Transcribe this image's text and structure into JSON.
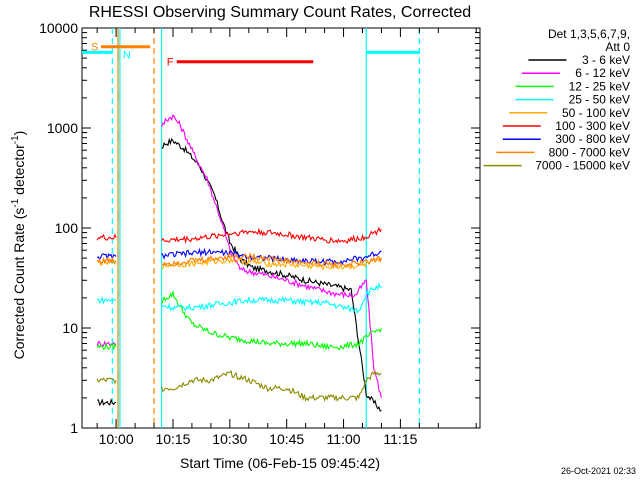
{
  "chart_data": {
    "type": "line",
    "title": "RHESSI Observing Summary Count Rates, Corrected",
    "xlabel": "Start Time (06-Feb-15 09:45:42)",
    "ylabel_main": "Corrected Count Rate (s",
    "ylabel_sup1": "-1",
    "ylabel_mid": " detector",
    "ylabel_sup2": "-1",
    "ylabel_end": ")",
    "yscale": "log",
    "ylim": [
      1,
      10000
    ],
    "xlim": [
      -9,
      96
    ],
    "x_unit": "minutes from 10:00",
    "y_ticks": [
      {
        "value": 1,
        "label": "1"
      },
      {
        "value": 10,
        "label": "10"
      },
      {
        "value": 100,
        "label": "100"
      },
      {
        "value": 1000,
        "label": "1000"
      },
      {
        "value": 10000,
        "label": "10000"
      }
    ],
    "x_ticks": [
      {
        "value": 0,
        "label": "10:00"
      },
      {
        "value": 15,
        "label": "10:15"
      },
      {
        "value": 30,
        "label": "10:30"
      },
      {
        "value": 45,
        "label": "10:45"
      },
      {
        "value": 60,
        "label": "11:00"
      },
      {
        "value": 75,
        "label": "11:15"
      }
    ],
    "legend_title_line1": "Det 1,3,5,6,7,9,",
    "legend_title_line2": "Att 0",
    "legend_position": "right",
    "timestamp": "26-Oct-2021 02:33",
    "flags": [
      {
        "label": "S",
        "color": "#ff7f00",
        "x1": -4,
        "x2": 9,
        "y": 6500
      },
      {
        "label": "N",
        "color": "#00ffff",
        "x1": 1,
        "x2": 1,
        "y": 6500
      },
      {
        "label": "F",
        "color": "#ff0000",
        "x1": 16,
        "x2": 52,
        "y": 4600
      }
    ],
    "night_bars": [
      {
        "x1": -9,
        "x2": -1,
        "y": 5700
      },
      {
        "x1": 66,
        "x2": 80,
        "y": 5700
      }
    ],
    "vlines": [
      {
        "x": -1,
        "color": "#00ffff",
        "style": "dashed"
      },
      {
        "x": 1,
        "color": "#00ffff",
        "style": "solid"
      },
      {
        "x": 0.5,
        "color": "#ff7f00",
        "style": "solid"
      },
      {
        "x": 10,
        "color": "#ff7f00",
        "style": "dashed"
      },
      {
        "x": 12,
        "color": "#00ffff",
        "style": "solid"
      },
      {
        "x": 66,
        "color": "#00ffff",
        "style": "solid"
      },
      {
        "x": 80,
        "color": "#00ffff",
        "style": "dashed"
      }
    ],
    "series": [
      {
        "name": "3 - 6 keV",
        "color": "#000000",
        "x": [
          -5,
          0,
          12,
          13,
          15,
          18,
          22,
          26,
          28,
          30,
          33,
          36,
          42,
          50,
          58,
          62,
          66,
          68,
          70
        ],
        "y": [
          1.8,
          1.8,
          650,
          700,
          750,
          620,
          420,
          210,
          120,
          72,
          48,
          40,
          36,
          30,
          26,
          24,
          2.2,
          1.8,
          1.5
        ]
      },
      {
        "name": "6 - 12 keV",
        "color": "#ff00ff",
        "x": [
          -5,
          0,
          12,
          13,
          15,
          17,
          20,
          24,
          28,
          30,
          33,
          38,
          45,
          52,
          58,
          63,
          66,
          68,
          70
        ],
        "y": [
          7,
          7,
          1000,
          1200,
          1320,
          1050,
          600,
          310,
          110,
          60,
          38,
          35,
          30,
          25,
          22,
          21,
          30,
          4,
          2
        ]
      },
      {
        "name": "12 - 25 keV",
        "color": "#00ff00",
        "x": [
          -5,
          0,
          12,
          13,
          15,
          17,
          20,
          25,
          30,
          35,
          40,
          45,
          50,
          55,
          60,
          64,
          66,
          68,
          70
        ],
        "y": [
          6.5,
          6.5,
          18,
          20,
          22,
          16,
          11,
          9,
          8,
          7.5,
          7,
          7,
          7,
          6.5,
          6.5,
          7,
          8,
          9,
          10
        ]
      },
      {
        "name": "25 - 50 keV",
        "color": "#00ffff",
        "x": [
          -5,
          0,
          12,
          15,
          20,
          25,
          30,
          35,
          40,
          45,
          50,
          55,
          60,
          64,
          66,
          68,
          70
        ],
        "y": [
          19,
          19,
          17,
          16,
          16,
          17,
          18,
          19,
          19,
          19,
          18,
          18,
          16,
          15,
          22,
          25,
          26
        ]
      },
      {
        "name": "50 - 100 keV",
        "color": "#ffaa00",
        "x": [
          -5,
          0,
          12,
          15,
          20,
          25,
          30,
          35,
          40,
          45,
          50,
          55,
          60,
          65,
          70
        ],
        "y": [
          45,
          45,
          42,
          43,
          44,
          46,
          48,
          46,
          44,
          43,
          42,
          41,
          41,
          42,
          48
        ]
      },
      {
        "name": "100 - 300 keV",
        "color": "#ff0000",
        "x": [
          -5,
          0,
          12,
          15,
          20,
          25,
          30,
          35,
          40,
          45,
          50,
          55,
          60,
          65,
          70
        ],
        "y": [
          80,
          80,
          75,
          76,
          78,
          82,
          88,
          92,
          90,
          86,
          80,
          76,
          74,
          80,
          97
        ]
      },
      {
        "name": "300 - 800 keV",
        "color": "#0000ff",
        "x": [
          -5,
          0,
          12,
          15,
          20,
          25,
          30,
          35,
          40,
          45,
          50,
          55,
          60,
          65,
          70
        ],
        "y": [
          52,
          52,
          53,
          54,
          56,
          58,
          56,
          52,
          50,
          48,
          47,
          46,
          47,
          50,
          58
        ]
      },
      {
        "name": "800 - 7000 keV",
        "color": "#ff7f00",
        "x": [
          -5,
          0,
          12,
          15,
          20,
          25,
          30,
          35,
          40,
          45,
          50,
          55,
          60,
          65,
          70
        ],
        "y": [
          47,
          47,
          44,
          45,
          47,
          49,
          52,
          52,
          50,
          47,
          45,
          44,
          43,
          45,
          50
        ]
      },
      {
        "name": "7000 - 15000 keV",
        "color": "#8b8b00",
        "x": [
          -5,
          0,
          12,
          15,
          20,
          25,
          30,
          35,
          40,
          45,
          50,
          55,
          60,
          64,
          66,
          68,
          70
        ],
        "y": [
          3,
          3,
          2.5,
          2.5,
          3,
          3,
          3.5,
          3,
          2.5,
          2.5,
          2,
          2,
          2,
          2,
          3,
          3.5,
          3.5
        ]
      }
    ]
  }
}
